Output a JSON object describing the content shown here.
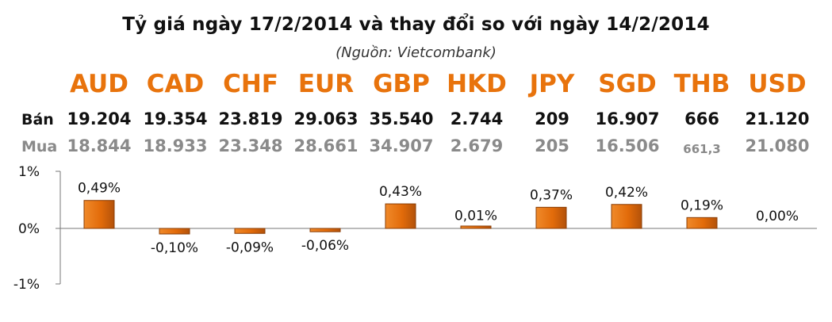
{
  "title": "Tỷ giá ngày 17/2/2014 và thay đổi so với ngày 14/2/2014",
  "source": "(Nguồn: Vietcombank)",
  "row_labels": {
    "sell": "Bán",
    "buy": "Mua"
  },
  "currencies": [
    "AUD",
    "CAD",
    "CHF",
    "EUR",
    "GBP",
    "HKD",
    "JPY",
    "SGD",
    "THB",
    "USD"
  ],
  "sell": [
    "19.204",
    "19.354",
    "23.819",
    "29.063",
    "35.540",
    "2.744",
    "209",
    "16.907",
    "666",
    "21.120"
  ],
  "buy": [
    "18.844",
    "18.933",
    "23.348",
    "28.661",
    "34.907",
    "2.679",
    "205",
    "16.506",
    "661,3",
    "21.080"
  ],
  "colors": {
    "currency": "#E8730C",
    "bar": "#E26B0A",
    "bar_dark": "#8A3D05",
    "buy_text": "#8a8a8a"
  },
  "chart_data": {
    "type": "bar",
    "categories": [
      "AUD",
      "CAD",
      "CHF",
      "EUR",
      "GBP",
      "HKD",
      "JPY",
      "SGD",
      "THB",
      "USD"
    ],
    "values": [
      0.49,
      -0.1,
      -0.09,
      -0.06,
      0.43,
      0.01,
      0.37,
      0.42,
      0.19,
      0.0
    ],
    "data_labels": [
      "0,49%",
      "-0,10%",
      "-0,09%",
      "-0,06%",
      "0,43%",
      "0,01%",
      "0,37%",
      "0,42%",
      "0,19%",
      "0,00%"
    ],
    "yticks": [
      "1%",
      "0%",
      "-1%"
    ],
    "ytick_values": [
      1,
      0,
      -1
    ],
    "ylim": [
      -1,
      1
    ],
    "grid": false,
    "xlabel": "",
    "ylabel": ""
  }
}
